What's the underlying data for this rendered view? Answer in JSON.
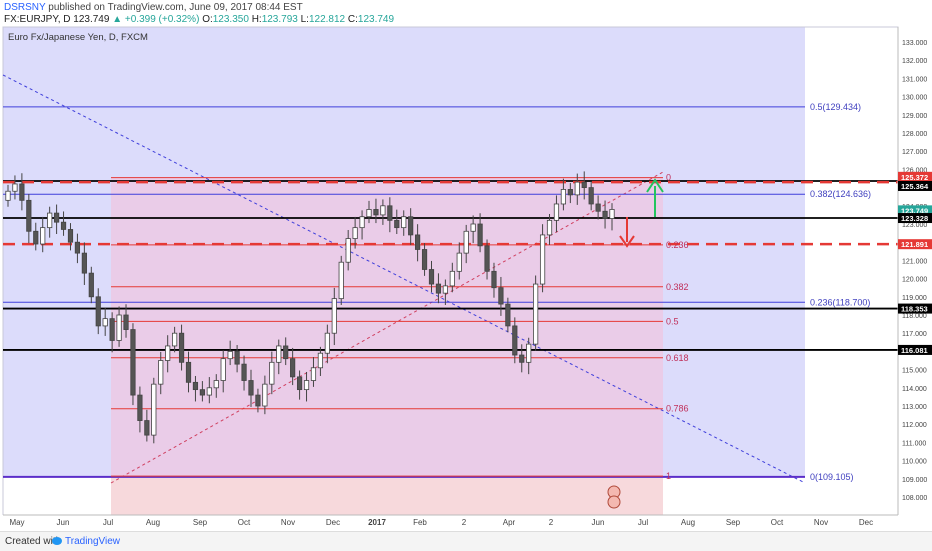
{
  "header": {
    "user": "DSRSNY",
    "published_text": "published on TradingView.com, June 09, 2017 08:44 EST",
    "symbol": "FX:EURJPY, D",
    "last": "123.749",
    "change": "+0.399 (+0.32%)",
    "o_label": "O:",
    "o_value": "123.350",
    "h_label": "H:",
    "h_value": "123.793",
    "l_label": "L:",
    "l_value": "122.812",
    "c_label": "C:",
    "c_value": "123.749"
  },
  "pane_title": "Euro Fx/Japanese Yen, D, FXCM",
  "footer": {
    "created_with": "Created with",
    "brand": "TradingView"
  },
  "colors": {
    "up": "#26a69a",
    "blue_zone": "#dcdcfb",
    "pink_zone": "#ecc9e4",
    "red": "#e53935",
    "blue_line": "#3f3fdb",
    "black": "#000000"
  },
  "chart_data": {
    "type": "candlestick",
    "title": "Euro Fx/Japanese Yen, D, FXCM",
    "ylim": [
      107.5,
      133.5
    ],
    "x_ticks": [
      "May",
      "Jun",
      "Jul",
      "Aug",
      "Sep",
      "Oct",
      "Nov",
      "Dec",
      "2017",
      "Feb",
      "2",
      "Apr",
      "2",
      "Jun",
      "Jul",
      "Aug",
      "Sep",
      "Oct",
      "Nov",
      "Dec"
    ],
    "y_ticks": [
      "108.000",
      "109.000",
      "110.000",
      "111.000",
      "112.000",
      "113.000",
      "114.000",
      "115.000",
      "116.000",
      "117.000",
      "118.000",
      "119.000",
      "120.000",
      "121.000",
      "122.000",
      "123.000",
      "124.000",
      "125.000",
      "126.000",
      "127.000",
      "128.000",
      "129.000",
      "130.000",
      "131.000",
      "132.000",
      "133.000"
    ],
    "price_markers": [
      {
        "label": "125.372",
        "value": 125.372,
        "color": "#e53935"
      },
      {
        "label": "125.364",
        "value": 125.364,
        "color": "#000000"
      },
      {
        "label": "123.749",
        "value": 123.749,
        "color": "#26a69a"
      },
      {
        "label": "123.328",
        "value": 123.328,
        "color": "#000000"
      },
      {
        "label": "121.891",
        "value": 121.891,
        "color": "#e53935"
      },
      {
        "label": "118.353",
        "value": 118.353,
        "color": "#000000"
      },
      {
        "label": "116.081",
        "value": 116.081,
        "color": "#000000"
      }
    ],
    "fib_long": [
      {
        "label": "0.5(129.434)",
        "value": 129.434
      },
      {
        "label": "0.382(124.636)",
        "value": 124.636
      },
      {
        "label": "0.236(118.700)",
        "value": 118.7
      },
      {
        "label": "0(109.105)",
        "value": 109.105
      }
    ],
    "fib_short": [
      {
        "label": "0",
        "value": 125.55
      },
      {
        "label": "0.236",
        "value": 121.85
      },
      {
        "label": "0.382",
        "value": 119.55
      },
      {
        "label": "0.5",
        "value": 117.65
      },
      {
        "label": "0.618",
        "value": 115.65
      },
      {
        "label": "0.786",
        "value": 112.85
      },
      {
        "label": "1",
        "value": 109.15
      }
    ],
    "horizontal_lines": [
      {
        "value": 125.364,
        "style": "solid-black"
      },
      {
        "value": 125.3,
        "style": "dashed-red"
      },
      {
        "value": 123.328,
        "style": "solid-black"
      },
      {
        "value": 121.891,
        "style": "dashed-red"
      },
      {
        "value": 118.353,
        "style": "solid-black"
      },
      {
        "value": 116.081,
        "style": "solid-black"
      }
    ],
    "closes": [
      124.8,
      125.2,
      124.3,
      122.6,
      121.9,
      122.8,
      123.6,
      123.1,
      122.7,
      122.0,
      121.4,
      120.3,
      119.0,
      117.4,
      117.8,
      116.6,
      118.0,
      117.2,
      113.6,
      112.2,
      111.4,
      114.2,
      115.5,
      116.3,
      117.0,
      115.4,
      114.3,
      113.9,
      113.6,
      114.0,
      114.4,
      115.6,
      116.0,
      115.3,
      114.4,
      113.6,
      113.0,
      114.2,
      115.4,
      116.3,
      115.6,
      114.6,
      113.9,
      114.4,
      115.1,
      115.9,
      117.0,
      118.9,
      120.9,
      122.2,
      122.8,
      123.4,
      123.8,
      123.5,
      124.0,
      123.2,
      122.8,
      123.4,
      122.4,
      121.6,
      120.5,
      119.7,
      119.2,
      119.6,
      120.4,
      121.4,
      122.6,
      123.0,
      121.8,
      120.4,
      119.5,
      118.6,
      117.4,
      115.8,
      115.4,
      116.4,
      119.7,
      122.4,
      123.2,
      124.1,
      124.9,
      124.6,
      125.3,
      125.0,
      124.1,
      123.7,
      123.3,
      123.8
    ]
  }
}
